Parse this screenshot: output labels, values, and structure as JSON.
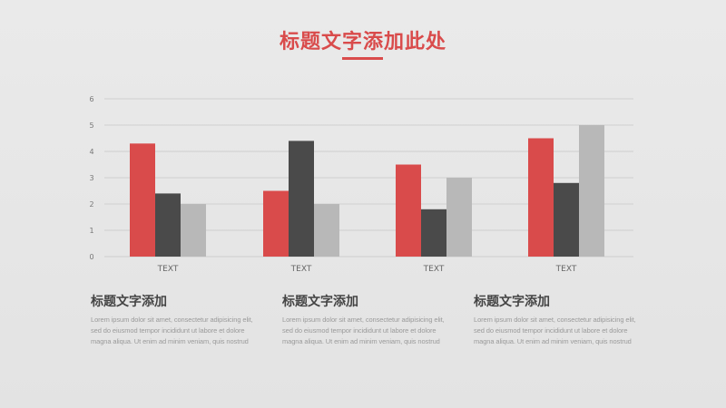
{
  "page": {
    "title": "标题文字添加此处"
  },
  "colors": {
    "accent_red": "#d94b4b",
    "dark_gray": "#4a4a4a",
    "light_gray": "#b8b8b8",
    "grid": "#cfcfcf"
  },
  "chart_data": {
    "type": "bar",
    "categories": [
      "TEXT",
      "TEXT",
      "TEXT",
      "TEXT"
    ],
    "series": [
      {
        "values": [
          4.3,
          2.5,
          3.5,
          4.5
        ],
        "color": "#d94b4b"
      },
      {
        "values": [
          2.4,
          4.4,
          1.8,
          2.8
        ],
        "color": "#4a4a4a"
      },
      {
        "values": [
          2.0,
          2.0,
          3.0,
          5.0
        ],
        "color": "#b8b8b8"
      }
    ],
    "title": "",
    "xlabel": "",
    "ylabel": "",
    "ylim": [
      0,
      6
    ],
    "yticks": [
      0,
      1,
      2,
      3,
      4,
      5,
      6
    ],
    "grid": true,
    "legend": "none"
  },
  "blocks": [
    {
      "title": "标题文字添加",
      "body": "Lorem ipsum dolor sit amet, consectetur adipisicing elit, sed do eiusmod tempor incididunt ut labore et dolore magna aliqua. Ut enim ad minim veniam, quis nostrud"
    },
    {
      "title": "标题文字添加",
      "body": "Lorem ipsum dolor sit amet, consectetur adipisicing elit, sed do eiusmod tempor incididunt ut labore et dolore magna aliqua. Ut enim ad minim veniam, quis nostrud"
    },
    {
      "title": "标题文字添加",
      "body": "Lorem ipsum dolor sit amet, consectetur adipisicing elit, sed do eiusmod tempor incididunt ut labore et dolore magna aliqua. Ut enim ad minim veniam, quis nostrud"
    }
  ]
}
